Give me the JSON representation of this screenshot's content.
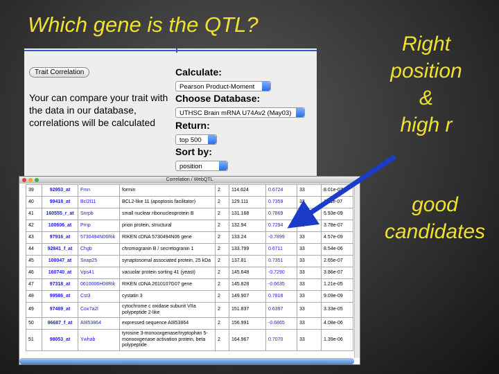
{
  "title": "Which gene is the QTL?",
  "notes": {
    "criteria": [
      "Right",
      "position",
      "&",
      "high r"
    ],
    "result": [
      "good",
      "candidates"
    ]
  },
  "form": {
    "button": "Trait Correlation",
    "description": "Your can compare your trait with the data in our database, correlations will be calculated",
    "calculate_label": "Calculate:",
    "calculate_value": "Pearson Product-Moment",
    "database_label": "Choose Database:",
    "database_value": "UTHSC Brain mRNA U74Av2 (May03)",
    "return_label": "Return:",
    "return_value": "top 500",
    "sort_label": "Sort by:",
    "sort_value": "position"
  },
  "window": {
    "title": "Correlation / WebQTL",
    "rows": [
      [
        "39",
        "92953_at",
        "Fmn",
        "formin",
        "2",
        "114.624",
        "0.6724",
        "33",
        "8.01e-07"
      ],
      [
        "40",
        "99418_at",
        "Bcl2l11",
        "BCL2-like 11 (apoptosis facilitator)",
        "2",
        "129.111",
        "0.7359",
        "33",
        "1.11e-07"
      ],
      [
        "41",
        "160555_r_at",
        "Snrpb",
        "small nuclear ribonucleoprotein B",
        "2",
        "131.168",
        "0.7869",
        "33",
        "5.93e-09"
      ],
      [
        "42",
        "100606_at",
        "Prnp",
        "prion protein, structural",
        "2",
        "132.94",
        "0.7294",
        "33",
        "3.78e-07"
      ],
      [
        "43",
        "97916_at",
        "5730494N06Rik",
        "RIKEN cDNA 5730494N06 gene",
        "2",
        "133.24",
        "-0.7899",
        "33",
        "4.57e-09"
      ],
      [
        "44",
        "92841_f_at",
        "Chgb",
        "chromogranin B / secretogranin 1",
        "2",
        "133.799",
        "0.6711",
        "33",
        "8.54e-06"
      ],
      [
        "45",
        "100047_at",
        "Snap25",
        "synaptosomal associated protein, 25 kDa",
        "2",
        "137.81",
        "0.7351",
        "33",
        "2.65e-07"
      ],
      [
        "46",
        "160740_at",
        "Vps41",
        "vacuolar protein sorting 41 (yeast)",
        "2",
        "145.648",
        "-0.7290",
        "33",
        "3.86e-07"
      ],
      [
        "47",
        "97318_at",
        "0610006H08Rik",
        "RIKEN cDNA 2610107G07 gene",
        "2",
        "145.828",
        "-0.6635",
        "33",
        "1.21e-05"
      ],
      [
        "48",
        "99586_at",
        "Cst3",
        "cystatin 3",
        "2",
        "149.907",
        "0.7818",
        "33",
        "9.09e-09"
      ],
      [
        "49",
        "97489_at",
        "Cox7a2l",
        "cytochrome c oxidase subunit VIIa polypeptide 2-like",
        "2",
        "151.837",
        "0.6397",
        "33",
        "3.33e-05"
      ],
      [
        "50",
        "96687_f_at",
        "AI853864",
        "expressed sequence AI853864",
        "2",
        "156.991",
        "-0.6865",
        "33",
        "4.08e-06"
      ],
      [
        "51",
        "98053_at",
        "Ywhab",
        "tyrosine 3-monooxgenase/tryptophan 5-monooxgenase activation protein, beta polypeptide",
        "2",
        "164.967",
        "0.7070",
        "33",
        "1.39e-06"
      ]
    ]
  }
}
